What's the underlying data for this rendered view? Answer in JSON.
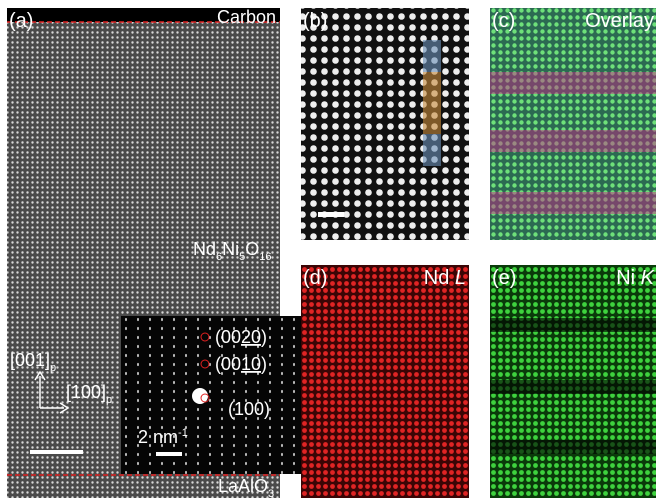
{
  "panel_a": {
    "label": "(a)",
    "top_layer": "Carbon",
    "film": [
      "Nd",
      "6",
      "Ni",
      "5",
      "O",
      "16"
    ],
    "substrate": [
      "LaAlO",
      "3"
    ],
    "direction_up": [
      "[001]",
      "p"
    ],
    "direction_right": [
      "[100]",
      "p"
    ],
    "spots": [
      [
        "(00",
        "20",
        ")"
      ],
      [
        "(00",
        "10",
        ")"
      ],
      [
        "(100)"
      ]
    ],
    "inset_scale": [
      "2 nm",
      "-1"
    ]
  },
  "panel_b": {
    "label": "(b)"
  },
  "panel_c": {
    "label": "(c)",
    "title": "Overlay"
  },
  "panel_d": {
    "label": "(d)",
    "title": [
      "Nd ",
      "L"
    ]
  },
  "panel_e": {
    "label": "(e)",
    "title": [
      "Ni ",
      "K"
    ]
  }
}
